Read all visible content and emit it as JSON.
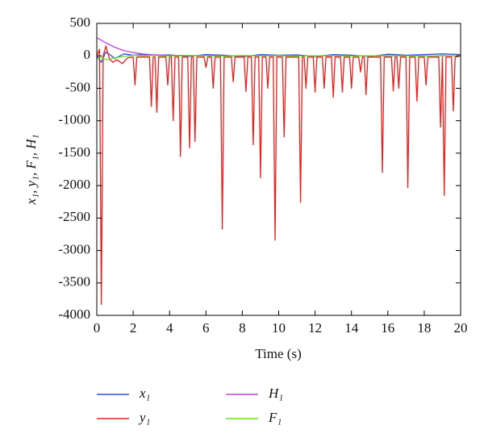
{
  "chart_data": {
    "type": "line",
    "xlabel": "Time (s)",
    "ylabel": "x₁, y₁, F₁, H₁",
    "xlim": [
      0,
      20
    ],
    "xticks": [
      0,
      2,
      4,
      6,
      8,
      10,
      12,
      14,
      16,
      18,
      20
    ],
    "ylim": [
      -4000,
      500
    ],
    "yticks": [
      -4000,
      -3500,
      -3000,
      -2500,
      -2000,
      -1500,
      -1000,
      -500,
      0,
      500
    ],
    "grid": false,
    "legend": "bottom",
    "series": [
      {
        "name": "x₁",
        "color": "#2f4fe0",
        "x": [
          0,
          0.25,
          0.5,
          1,
          1.5,
          2,
          2.5,
          3,
          4,
          5,
          6,
          7,
          8,
          9,
          10,
          11,
          12,
          13,
          14,
          15,
          16,
          17,
          18,
          19,
          20
        ],
        "values": [
          0,
          -100,
          60,
          -40,
          30,
          10,
          20,
          10,
          15,
          -10,
          20,
          10,
          -15,
          20,
          10,
          15,
          -10,
          20,
          10,
          -10,
          25,
          10,
          20,
          30,
          20
        ]
      },
      {
        "name": "y₁",
        "color": "#e8201c",
        "x": [
          0,
          0.15,
          0.25,
          0.35,
          0.5,
          0.7,
          0.9,
          1.1,
          1.4,
          1.7,
          2.0,
          2.1,
          2.2,
          2.9,
          3.0,
          3.1,
          3.2,
          3.3,
          3.4,
          3.8,
          3.9,
          4.0,
          4.1,
          4.2,
          4.3,
          4.5,
          4.6,
          4.7,
          5.0,
          5.1,
          5.2,
          5.3,
          5.4,
          5.5,
          5.9,
          6.0,
          6.1,
          6.3,
          6.4,
          6.5,
          6.8,
          6.9,
          7.0,
          7.4,
          7.5,
          7.6,
          8.1,
          8.2,
          8.3,
          8.5,
          8.6,
          8.7,
          8.9,
          9.0,
          9.1,
          9.3,
          9.4,
          9.5,
          9.7,
          9.8,
          9.9,
          10.2,
          10.3,
          10.4,
          11.1,
          11.2,
          11.3,
          11.4,
          11.5,
          11.6,
          11.9,
          12.0,
          12.1,
          12.4,
          12.5,
          12.6,
          12.9,
          13.0,
          13.1,
          13.4,
          13.5,
          13.6,
          13.9,
          14.0,
          14.1,
          14.4,
          14.5,
          14.6,
          14.7,
          14.8,
          14.9,
          15.6,
          15.7,
          15.8,
          16.2,
          16.3,
          16.4,
          16.5,
          16.6,
          16.7,
          17.0,
          17.1,
          17.2,
          17.5,
          17.6,
          17.7,
          18.0,
          18.1,
          18.2,
          18.8,
          18.9,
          19.0,
          19.1,
          19.2,
          19.5,
          19.6,
          19.7,
          20
        ],
        "values": [
          0,
          100,
          -3830,
          0,
          150,
          -50,
          -100,
          -60,
          -120,
          -30,
          -20,
          -450,
          -20,
          -20,
          -780,
          -20,
          -20,
          -870,
          -20,
          -20,
          -450,
          -20,
          -20,
          -1000,
          -20,
          -20,
          -1550,
          -20,
          -20,
          -1420,
          -20,
          -20,
          -1320,
          -20,
          -20,
          -180,
          -20,
          -20,
          -500,
          -20,
          -20,
          -2670,
          -20,
          -20,
          -400,
          -20,
          -20,
          -550,
          -20,
          -20,
          -1370,
          -20,
          -20,
          -1880,
          -20,
          -20,
          -500,
          -20,
          -20,
          -2840,
          -20,
          -20,
          -1250,
          -20,
          -20,
          -2260,
          -20,
          -20,
          -500,
          -20,
          -20,
          -560,
          -20,
          -20,
          -500,
          -20,
          -20,
          -640,
          -20,
          -20,
          -560,
          -20,
          -20,
          -500,
          -20,
          -20,
          -250,
          -20,
          -20,
          -600,
          -20,
          -20,
          -1800,
          -20,
          -20,
          -540,
          -20,
          -20,
          -500,
          -20,
          -20,
          -2030,
          -20,
          -20,
          -700,
          -20,
          -20,
          -450,
          -20,
          -20,
          -1100,
          -20,
          -2150,
          -20,
          -20,
          -850,
          -20,
          0
        ]
      },
      {
        "name": "H₁",
        "color": "#c040e0",
        "x": [
          0,
          0.25,
          0.5,
          1,
          1.5,
          2,
          2.5,
          3,
          4,
          5,
          6,
          7,
          8,
          9,
          10,
          11,
          12,
          13,
          14,
          15,
          16,
          17,
          18,
          19,
          20
        ],
        "values": [
          280,
          240,
          200,
          130,
          80,
          50,
          30,
          18,
          8,
          5,
          3,
          2,
          1,
          1,
          0,
          0,
          0,
          0,
          0,
          0,
          0,
          0,
          0,
          0,
          0
        ]
      },
      {
        "name": "F₁",
        "color": "#60e020",
        "x": [
          0,
          0.25,
          0.5,
          1,
          1.5,
          2,
          2.5,
          3,
          4,
          5,
          6,
          7,
          8,
          9,
          10,
          11,
          12,
          13,
          14,
          15,
          16,
          17,
          18,
          19,
          20
        ],
        "values": [
          -50,
          -20,
          -60,
          -30,
          -10,
          10,
          0,
          5,
          -5,
          5,
          0,
          -5,
          5,
          0,
          5,
          -5,
          0,
          5,
          -5,
          0,
          5,
          0,
          -5,
          5,
          0
        ]
      }
    ]
  }
}
